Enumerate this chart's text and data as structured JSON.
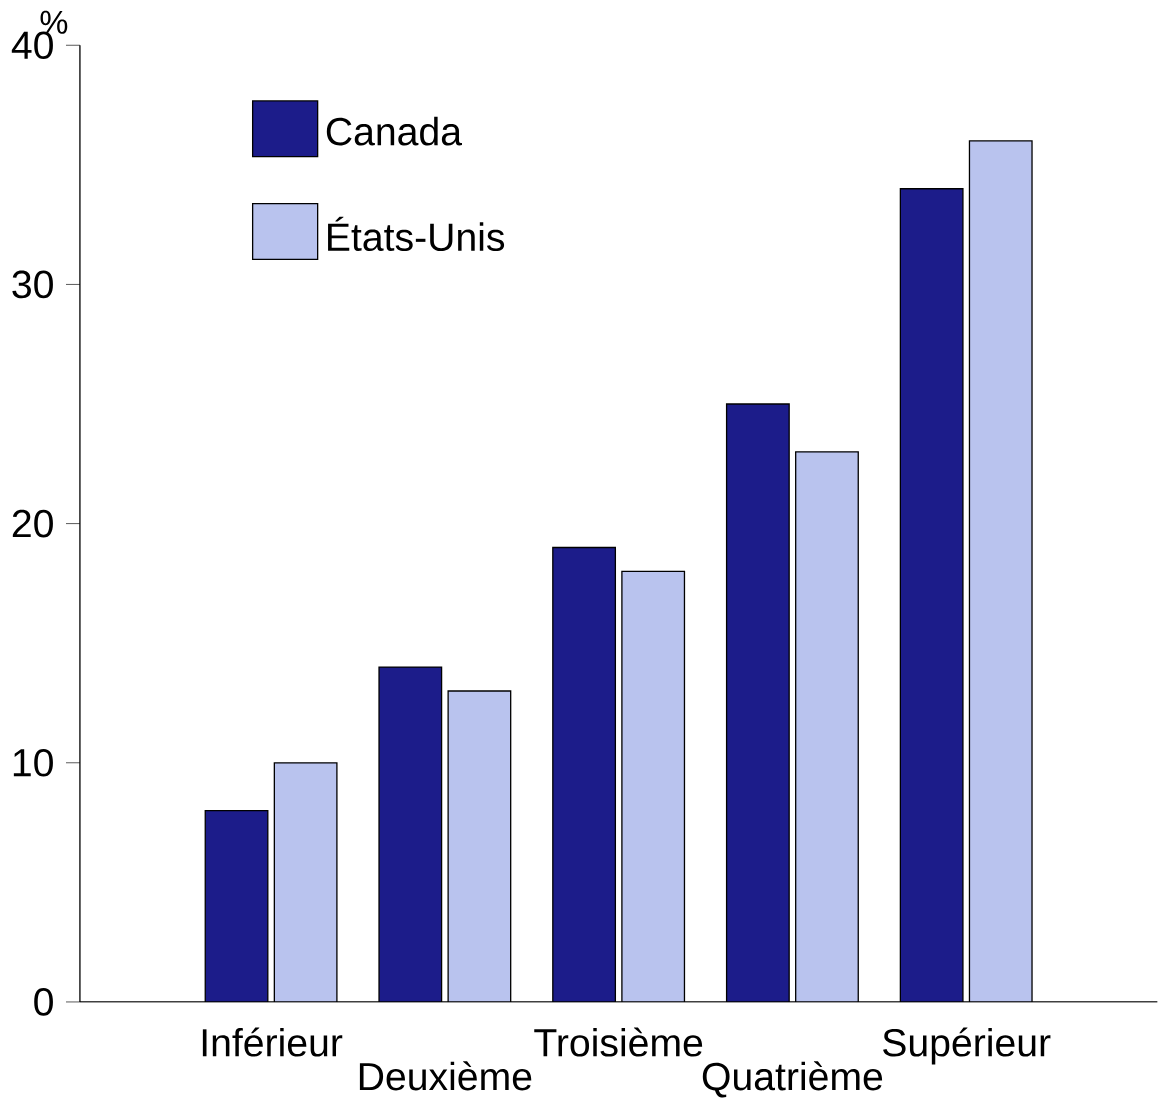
{
  "chart_data": {
    "type": "bar",
    "ylabel": "%",
    "categories": [
      "Inférieur",
      "Deuxième",
      "Troisième",
      "Quatrième",
      "Supérieur"
    ],
    "series": [
      {
        "name": "Canada",
        "color": "#1c1c8a",
        "values": [
          8,
          14,
          19,
          25,
          34
        ]
      },
      {
        "name": "États-Unis",
        "color": "#b9c3ee",
        "values": [
          10,
          13,
          18,
          23,
          36
        ]
      }
    ],
    "ylim": [
      0,
      40
    ],
    "yticks": [
      0,
      10,
      20,
      30,
      40
    ],
    "legend": "top left",
    "grid": false
  }
}
